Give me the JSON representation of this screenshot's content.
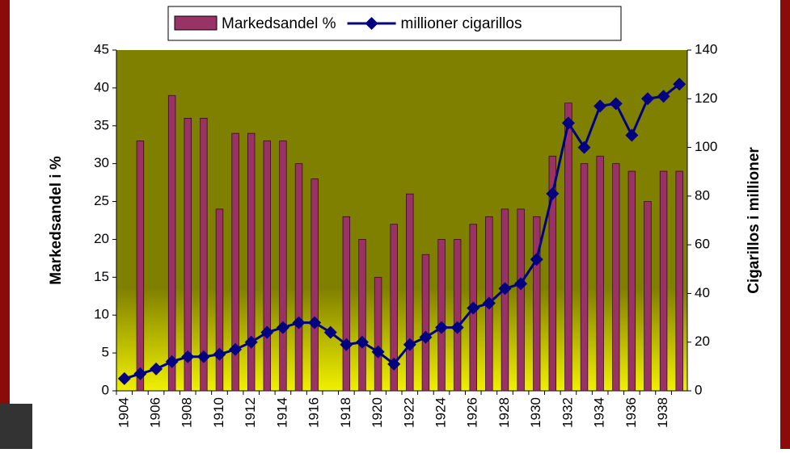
{
  "chart_data": {
    "type": "bar_line",
    "categories": [
      "1904",
      null,
      "1906",
      null,
      "1908",
      null,
      "1910",
      null,
      "1912",
      null,
      "1914",
      null,
      "1916",
      null,
      "1918",
      null,
      "1920",
      null,
      "1922",
      null,
      "1924",
      null,
      "1926",
      null,
      "1928",
      null,
      "1930",
      null,
      "1932",
      null,
      "1934",
      null,
      "1936",
      null,
      "1938",
      null
    ],
    "y_label": "Markedsandel i %",
    "y2_label": "Cigarillos i millioner",
    "ylim": [
      0,
      45
    ],
    "yticks": [
      0,
      5,
      10,
      15,
      20,
      25,
      30,
      35,
      40,
      45
    ],
    "y2lim": [
      0,
      140
    ],
    "y2ticks": [
      0,
      20,
      40,
      60,
      80,
      100,
      120,
      140
    ],
    "series": [
      {
        "name": "Markedsandel %",
        "type": "bar",
        "color": "#993366",
        "values": [
          null,
          33,
          null,
          39,
          36,
          36,
          24,
          34,
          34,
          33,
          33,
          30,
          28,
          null,
          23,
          20,
          15,
          22,
          26,
          18,
          20,
          20,
          22,
          23,
          24,
          24,
          23,
          31,
          38,
          30,
          31,
          30,
          29,
          25,
          29,
          29
        ]
      },
      {
        "name": "millioner cigarillos",
        "type": "line",
        "axis": "y2",
        "color": "#000080",
        "values": [
          5,
          7,
          9,
          12,
          14,
          14,
          15,
          17,
          20,
          24,
          26,
          28,
          28,
          24,
          19,
          20,
          16,
          11,
          19,
          22,
          26,
          26,
          34,
          36,
          42,
          44,
          54,
          81,
          110,
          100,
          117,
          118,
          105,
          120,
          121,
          126
        ]
      }
    ]
  }
}
